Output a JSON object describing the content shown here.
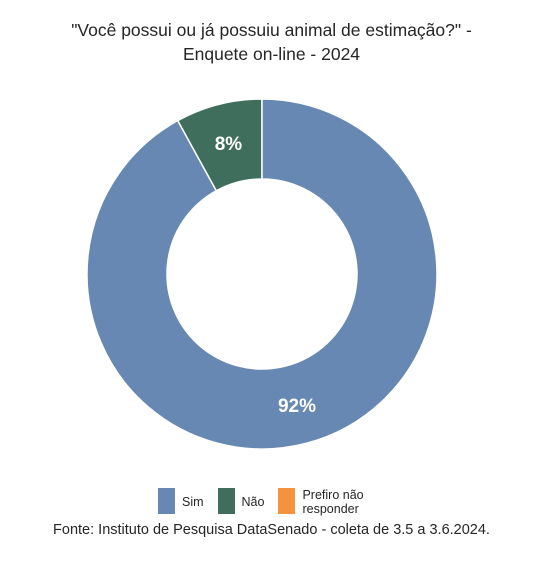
{
  "title_line1": "\"Você possui ou já possuiu animal de estimação?\" -",
  "title_line2": "Enquete on-line - 2024",
  "source": "Fonte: Instituto de Pesquisa DataSenado - coleta de 3.5 a 3.6.2024.",
  "chart_data": {
    "type": "pie",
    "donut": true,
    "title": "\"Você possui ou já possuiu animal de estimação?\" - Enquete on-line - 2024",
    "categories": [
      "Sim",
      "Não",
      "Prefiro não responder"
    ],
    "values": [
      92,
      8,
      0
    ],
    "labels": [
      "92%",
      "8%",
      ""
    ],
    "colors": [
      "#6688b2",
      "#3f6f5c",
      "#f5923e"
    ],
    "legend_position": "bottom"
  },
  "legend": [
    {
      "label": "Sim",
      "color": "#6688b2"
    },
    {
      "label": "Não",
      "color": "#3f6f5c"
    },
    {
      "label": "Prefiro não responder",
      "color": "#f5923e"
    }
  ]
}
